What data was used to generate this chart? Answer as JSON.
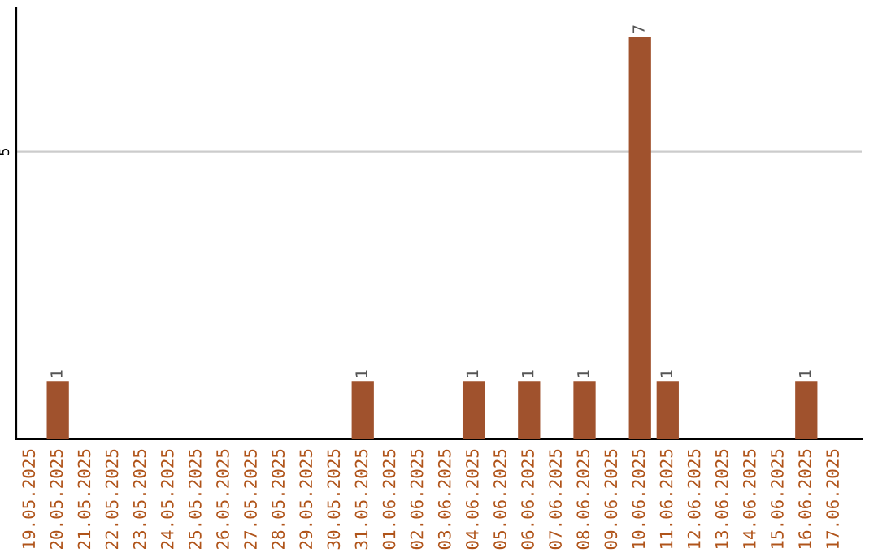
{
  "chart_data": {
    "type": "bar",
    "categories": [
      "19.05.2025",
      "20.05.2025",
      "21.05.2025",
      "22.05.2025",
      "23.05.2025",
      "24.05.2025",
      "25.05.2025",
      "26.05.2025",
      "27.05.2025",
      "28.05.2025",
      "29.05.2025",
      "30.05.2025",
      "31.05.2025",
      "01.06.2025",
      "02.06.2025",
      "03.06.2025",
      "04.06.2025",
      "05.06.2025",
      "06.06.2025",
      "07.06.2025",
      "08.06.2025",
      "09.06.2025",
      "10.06.2025",
      "11.06.2025",
      "12.06.2025",
      "13.06.2025",
      "14.06.2025",
      "15.06.2025",
      "16.06.2025",
      "17.06.2025"
    ],
    "values": [
      0,
      1,
      0,
      0,
      0,
      0,
      0,
      0,
      0,
      0,
      0,
      0,
      1,
      0,
      0,
      0,
      1,
      0,
      1,
      0,
      1,
      0,
      7,
      1,
      0,
      0,
      0,
      0,
      1,
      0
    ],
    "value_labels": [
      null,
      "1",
      null,
      null,
      null,
      null,
      null,
      null,
      null,
      null,
      null,
      null,
      "1",
      null,
      null,
      null,
      "1",
      null,
      "1",
      null,
      "1",
      null,
      "7",
      "1",
      null,
      null,
      null,
      null,
      "1",
      null
    ],
    "color": "#a0522d",
    "ylim": [
      0,
      7.5
    ],
    "yticks": [
      5
    ],
    "grid": "y"
  }
}
